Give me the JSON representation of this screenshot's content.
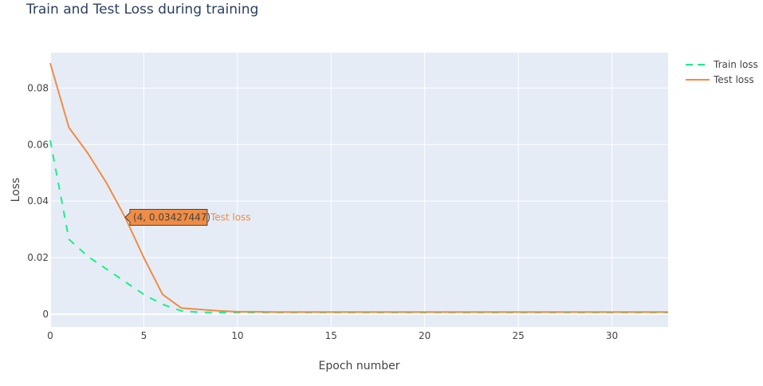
{
  "chart_data": {
    "type": "line",
    "title": "Train and Test Loss during training",
    "xlabel": "Epoch number",
    "ylabel": "Loss",
    "xlim": [
      0,
      33
    ],
    "ylim": [
      -0.0045,
      0.0925
    ],
    "xticks": [
      0,
      5,
      10,
      15,
      20,
      25,
      30
    ],
    "xtick_labels": [
      "0",
      "5",
      "10",
      "15",
      "20",
      "25",
      "30"
    ],
    "yticks": [
      0,
      0.02,
      0.04,
      0.06,
      0.08
    ],
    "ytick_labels": [
      "0",
      "0.02",
      "0.04",
      "0.06",
      "0.08"
    ],
    "grid": true,
    "legend_position": "top-right",
    "series": [
      {
        "name": "Train loss",
        "color": "#19f08a",
        "dash": "dash",
        "x": [
          0,
          1,
          2,
          3,
          4,
          5,
          6,
          7,
          8,
          9,
          10,
          11,
          12,
          13,
          14,
          15,
          16,
          17,
          18,
          19,
          20,
          21,
          22,
          23,
          24,
          25,
          26,
          27,
          28,
          29,
          30,
          31,
          32,
          33
        ],
        "y": [
          0.0615,
          0.0265,
          0.0205,
          0.016,
          0.0115,
          0.007,
          0.0035,
          0.0012,
          0.0007,
          0.0006,
          0.0006,
          0.0006,
          0.0006,
          0.0006,
          0.0006,
          0.0006,
          0.0006,
          0.0006,
          0.0006,
          0.0006,
          0.0006,
          0.0006,
          0.0006,
          0.0006,
          0.0006,
          0.0006,
          0.0006,
          0.0006,
          0.0006,
          0.0006,
          0.0006,
          0.0006,
          0.0006,
          0.0006
        ]
      },
      {
        "name": "Test loss",
        "color": "#f08c44",
        "dash": "solid",
        "x": [
          0,
          1,
          2,
          3,
          4,
          5,
          6,
          7,
          8,
          9,
          10,
          11,
          12,
          13,
          14,
          15,
          16,
          17,
          18,
          19,
          20,
          21,
          22,
          23,
          24,
          25,
          26,
          27,
          28,
          29,
          30,
          31,
          32,
          33
        ],
        "y": [
          0.0888,
          0.066,
          0.057,
          0.0465,
          0.03427447,
          0.02,
          0.007,
          0.0022,
          0.0017,
          0.0012,
          0.0009,
          0.0009,
          0.0008,
          0.0008,
          0.0008,
          0.0008,
          0.0008,
          0.0008,
          0.0008,
          0.0008,
          0.0008,
          0.0008,
          0.0008,
          0.0008,
          0.0008,
          0.0008,
          0.0008,
          0.0008,
          0.0008,
          0.0008,
          0.0008,
          0.0008,
          0.0008,
          0.0008
        ]
      }
    ],
    "hover": {
      "series": "Test loss",
      "x": 4,
      "y": 0.03427447,
      "text": "(4, 0.03427447)",
      "name": "Test loss"
    }
  }
}
